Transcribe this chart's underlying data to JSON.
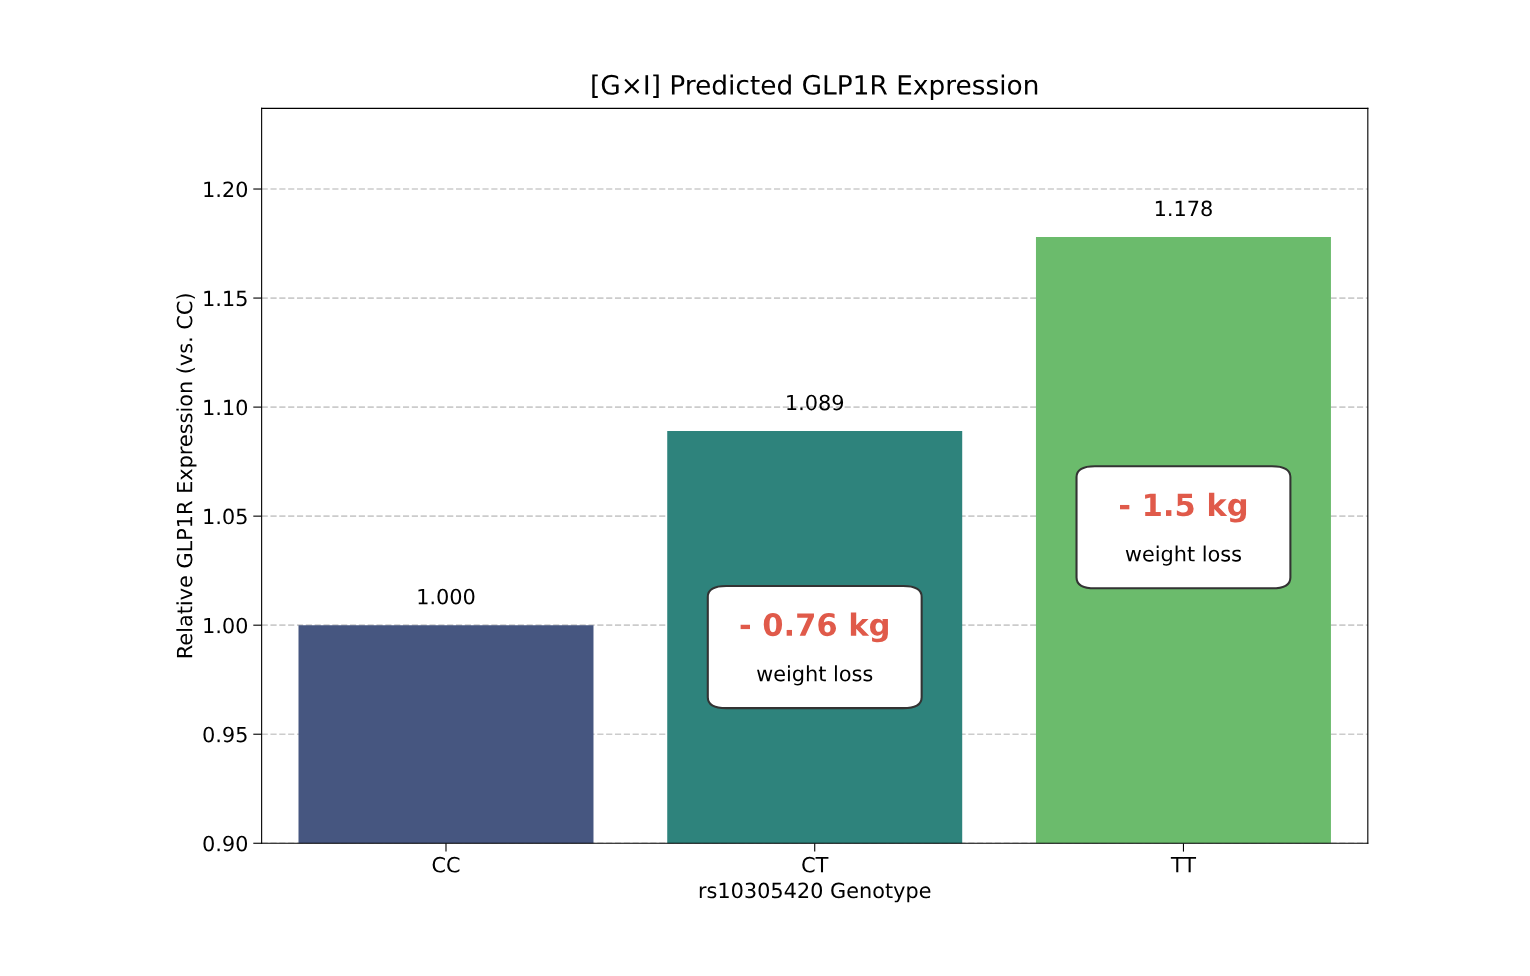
{
  "chart_data": {
    "type": "bar",
    "title": "[G×I] Predicted GLP1R Expression",
    "xlabel": "rs10305420 Genotype",
    "ylabel": "Relative GLP1R Expression (vs. CC)",
    "categories": [
      "CC",
      "CT",
      "TT"
    ],
    "values": [
      1.0,
      1.089,
      1.178
    ],
    "value_labels": [
      "1.000",
      "1.089",
      "1.178"
    ],
    "colors": [
      "#465680",
      "#2e837c",
      "#6bbb6c"
    ],
    "ylim": [
      0.9,
      1.237
    ],
    "yticks": [
      {
        "value": 0.9,
        "label": "0.90"
      },
      {
        "value": 0.95,
        "label": "0.95"
      },
      {
        "value": 1.0,
        "label": "1.00"
      },
      {
        "value": 1.05,
        "label": "1.05"
      },
      {
        "value": 1.1,
        "label": "1.10"
      },
      {
        "value": 1.15,
        "label": "1.15"
      },
      {
        "value": 1.2,
        "label": "1.20"
      }
    ],
    "grid": "y",
    "annotations": [
      "- 0.76 kg\nweight loss",
      "- 1.5 kg\nweight loss"
    ]
  }
}
